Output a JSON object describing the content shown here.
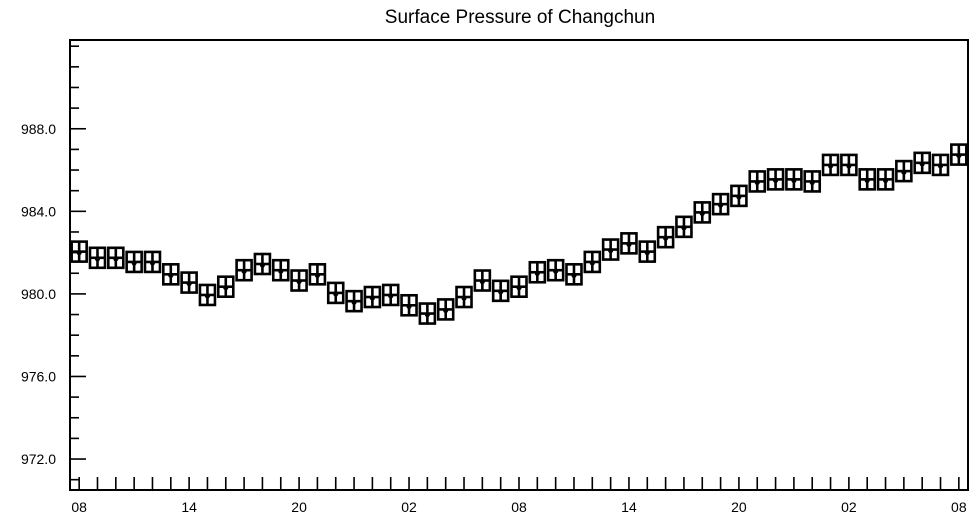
{
  "chart_data": {
    "type": "scatter",
    "title": "Surface Pressure of Changchun",
    "xlabel": "",
    "ylabel": "",
    "y_ticks": [
      "972.0",
      "976.0",
      "980.0",
      "984.0",
      "988.0"
    ],
    "ylim": [
      970.5,
      992.3
    ],
    "x_tick_labels": [
      "08",
      "14",
      "20",
      "02",
      "08",
      "14",
      "20",
      "02",
      "08"
    ],
    "x_label_hours": [
      0,
      6,
      12,
      18,
      24,
      30,
      36,
      42,
      48
    ],
    "xlim": [
      -0.5,
      48.5
    ],
    "marker": "box-plus",
    "grid": false,
    "series": [
      {
        "x": [
          0,
          1,
          2,
          3,
          4,
          5,
          6,
          7,
          8,
          9,
          10,
          11,
          12,
          13,
          14,
          15,
          16,
          17,
          18,
          19,
          20,
          21,
          22,
          23,
          24,
          25,
          26,
          27,
          28,
          29,
          30,
          31,
          32,
          33,
          34,
          35,
          36,
          37,
          38,
          39,
          40,
          41,
          42,
          43,
          44,
          45,
          46,
          47,
          48
        ],
        "values": [
          982.0,
          981.7,
          981.7,
          981.5,
          981.5,
          980.9,
          980.5,
          979.9,
          980.3,
          981.1,
          981.4,
          981.1,
          980.6,
          980.9,
          980.0,
          979.6,
          979.8,
          979.9,
          979.4,
          979.0,
          979.2,
          979.8,
          980.6,
          980.1,
          980.3,
          981.0,
          981.1,
          980.9,
          981.5,
          982.1,
          982.4,
          982.0,
          982.7,
          983.2,
          983.9,
          984.3,
          984.7,
          985.4,
          985.5,
          985.5,
          985.4,
          986.2,
          986.2,
          985.5,
          985.5,
          985.9,
          986.3,
          986.2,
          986.7
        ]
      }
    ]
  }
}
